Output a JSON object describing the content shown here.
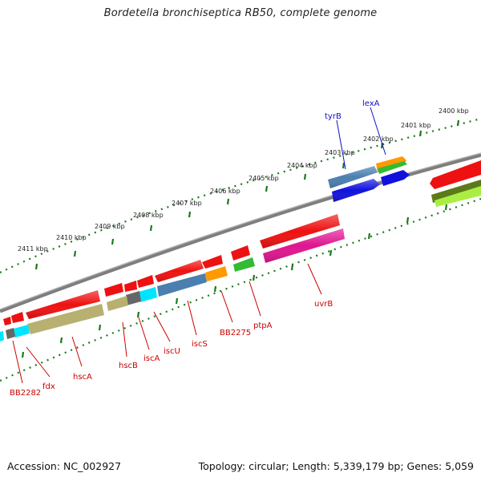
{
  "title": "Bordetella bronchiseptica RB50, complete genome",
  "footer": {
    "accession": "Accession: NC_002927",
    "topology": "Topology: circular; Length: 5,339,179 bp; Genes: 5,059"
  },
  "scale_labels": [
    "2400 kbp",
    "2401 kbp",
    "2402 kbp",
    "2403 kbp",
    "2404 kbp",
    "2405 kbp",
    "2406 kbp",
    "2407 kbp",
    "2408 kbp",
    "2409 kbp",
    "2410 kbp",
    "2411 kbp"
  ],
  "gene_labels_reverse": [
    "BB2282",
    "fdx",
    "hscA",
    "hscB",
    "iscA",
    "iscU",
    "iscS",
    "BB2275",
    "ptpA",
    "uvrB"
  ],
  "gene_labels_forward": [
    "tyrB",
    "lexA"
  ],
  "colors": {
    "backbone": "#8a8a8a",
    "ticks": "#1b7a1b",
    "gene_red": "#ee1111",
    "label_red": "#cc0000",
    "label_blue": "#1010c8",
    "steelblue": "#4a7fb0",
    "khaki": "#b8b070",
    "cyan": "#00e5ff",
    "magenta": "#e0158f",
    "green": "#33bb33",
    "orange": "#ff9900",
    "blue": "#1111dd",
    "olive": "#5b7a1a",
    "lime": "#aaee44",
    "gray": "#666666"
  }
}
